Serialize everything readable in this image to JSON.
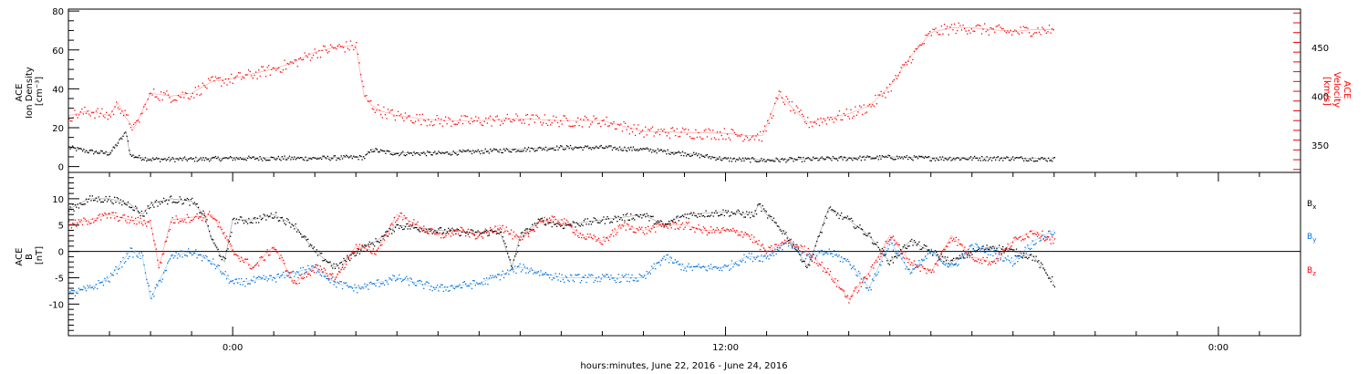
{
  "chart_data": [
    {
      "type": "scatter",
      "panel": "top",
      "ylabel_left": [
        "ACE",
        "Ion Density",
        "[cm⁻³]"
      ],
      "ylabel_right": [
        "ACE",
        "Velocity",
        "[km/s]"
      ],
      "ylim_left": [
        -3,
        81
      ],
      "ylim_right": [
        322,
        489
      ],
      "yticks_left": [
        0,
        20,
        40,
        60,
        80
      ],
      "yticks_right": [
        350,
        400,
        450
      ],
      "xlim_hours": [
        -4,
        26
      ],
      "series": [
        {
          "axis": "left",
          "color": "#000000",
          "x": [
            -4,
            -3.5,
            -3,
            -2.6,
            -2.5,
            -2.3,
            -2,
            -1.5,
            -1,
            0,
            1,
            2,
            3,
            3.2,
            3.4,
            3.6,
            4,
            5,
            6,
            7,
            8,
            9,
            10,
            11,
            12,
            13,
            14,
            15,
            16,
            17,
            18,
            19,
            20
          ],
          "y": [
            10,
            8,
            7,
            18,
            6,
            5,
            4,
            4,
            4,
            4.5,
            4.5,
            4.5,
            5,
            5,
            9,
            8,
            7,
            7,
            8,
            9,
            10,
            10,
            9,
            7,
            4,
            3.5,
            4,
            4.5,
            5,
            4.5,
            4.5,
            4.5,
            4
          ]
        },
        {
          "axis": "right",
          "color": "#ff0000",
          "x": [
            -4,
            -3.5,
            -3,
            -2.8,
            -2.6,
            -2.4,
            -2,
            -1.5,
            -1,
            -0.5,
            0,
            0.5,
            1,
            1.5,
            2,
            2.5,
            3,
            3.2,
            3.4,
            3.6,
            4,
            5,
            6,
            7,
            8,
            9,
            10,
            11,
            12,
            12.5,
            12.7,
            12.9,
            13.3,
            13.7,
            14,
            15,
            15.5,
            16,
            16.5,
            17,
            17.5,
            18,
            18.5,
            19,
            19.5,
            20
          ],
          "y": [
            380,
            385,
            380,
            393,
            378,
            367,
            403,
            400,
            403,
            415,
            418,
            423,
            428,
            435,
            445,
            450,
            452,
            400,
            390,
            385,
            380,
            375,
            375,
            377,
            375,
            375,
            364,
            363,
            362,
            360,
            360,
            360,
            402,
            385,
            373,
            382,
            390,
            410,
            440,
            465,
            470,
            470,
            468,
            466,
            468,
            468
          ]
        }
      ]
    },
    {
      "type": "scatter",
      "panel": "bottom",
      "ylabel_left": [
        "ACE",
        "B",
        "[nT]"
      ],
      "ylim": [
        -16,
        15
      ],
      "yticks": [
        -10,
        -5,
        0,
        5,
        10
      ],
      "xlim_hours": [
        -4,
        26
      ],
      "series": [
        {
          "name": "Bx",
          "name_main": "B",
          "name_sub": "x",
          "color": "#000000",
          "x": [
            -4,
            -3.5,
            -3,
            -2.5,
            -2.2,
            -2,
            -1.5,
            -1,
            -0.7,
            -0.5,
            -0.2,
            0,
            0.5,
            1,
            1.5,
            2,
            2.5,
            3,
            3.5,
            4,
            4.5,
            5,
            6,
            6.5,
            6.8,
            7,
            7.5,
            8,
            9,
            10,
            10.5,
            11,
            12,
            12.7,
            12.8,
            13,
            13.5,
            14,
            14.5,
            15,
            15.5,
            16,
            16.5,
            17,
            17.5,
            18,
            18.5,
            19,
            19.5,
            20
          ],
          "y": [
            8,
            10,
            10,
            9,
            7,
            9,
            10,
            9.5,
            7,
            2,
            -2,
            6,
            6,
            7,
            5,
            0,
            -3,
            0,
            2,
            5,
            4.5,
            4,
            3.5,
            4,
            -3,
            3,
            6,
            5,
            6,
            7,
            5,
            7,
            7.5,
            7,
            9,
            7,
            3,
            -3,
            8,
            6,
            3,
            -2,
            2,
            0,
            -2,
            0,
            1,
            0,
            -1,
            -6
          ]
        },
        {
          "name": "By",
          "name_main": "B",
          "name_sub": "y",
          "color": "#0070d8",
          "x": [
            -4,
            -3.5,
            -3,
            -2.5,
            -2.2,
            -2,
            -1.5,
            -1,
            -0.5,
            0,
            1,
            2,
            2.5,
            3,
            4,
            5,
            6,
            7,
            8,
            9,
            10,
            10.5,
            11,
            12,
            12.5,
            13,
            13.5,
            14,
            14.5,
            15,
            15.5,
            16,
            16.5,
            17,
            17.5,
            18,
            18.5,
            19,
            19.5,
            20
          ],
          "y": [
            -8,
            -7,
            -5,
            0,
            -1,
            -9,
            -1,
            0,
            -2,
            -6,
            -5,
            -3,
            -6,
            -7,
            -5,
            -7,
            -6,
            -3,
            -5,
            -5,
            -5,
            -1,
            -3,
            -3,
            -1,
            -1,
            2,
            -1,
            0,
            -2,
            -7,
            2,
            -4,
            0,
            -3,
            1,
            0,
            -2,
            2,
            4
          ]
        },
        {
          "name": "Bz",
          "name_main": "B",
          "name_sub": "z",
          "color": "#ff0000",
          "x": [
            -4,
            -3.5,
            -3,
            -2.5,
            -2,
            -1.8,
            -1.5,
            -1,
            -0.5,
            -0.2,
            0,
            0.5,
            1,
            1.5,
            2,
            2.5,
            3,
            3.5,
            4,
            4.5,
            5,
            5.5,
            6,
            6.5,
            7,
            7.5,
            8,
            8.5,
            9,
            9.5,
            10,
            10.5,
            11,
            11.5,
            12,
            12.5,
            13,
            13.5,
            14,
            14.5,
            15,
            15.5,
            16,
            16.5,
            17,
            17.5,
            18,
            18.5,
            19,
            19.5,
            20
          ],
          "y": [
            5,
            6,
            7,
            6,
            5.5,
            -3,
            6,
            6.5,
            7,
            3,
            0,
            -3,
            1,
            -6,
            -3,
            -5,
            1,
            0,
            7,
            5,
            3,
            4,
            3,
            5,
            2,
            6,
            6,
            3,
            2,
            5,
            4,
            5,
            5,
            4,
            4,
            3.5,
            0,
            2,
            0,
            -4,
            -9,
            -4,
            3,
            -2,
            -4,
            3,
            -1,
            -2,
            2,
            4,
            2
          ]
        }
      ]
    }
  ],
  "xaxis": {
    "tick_labels": [
      {
        "hours": 0,
        "label": "0:00"
      },
      {
        "hours": 12,
        "label": "12:00"
      },
      {
        "hours": 24,
        "label": "0:00"
      }
    ],
    "caption": "hours:minutes, June 22, 2016 - June 24, 2016"
  }
}
